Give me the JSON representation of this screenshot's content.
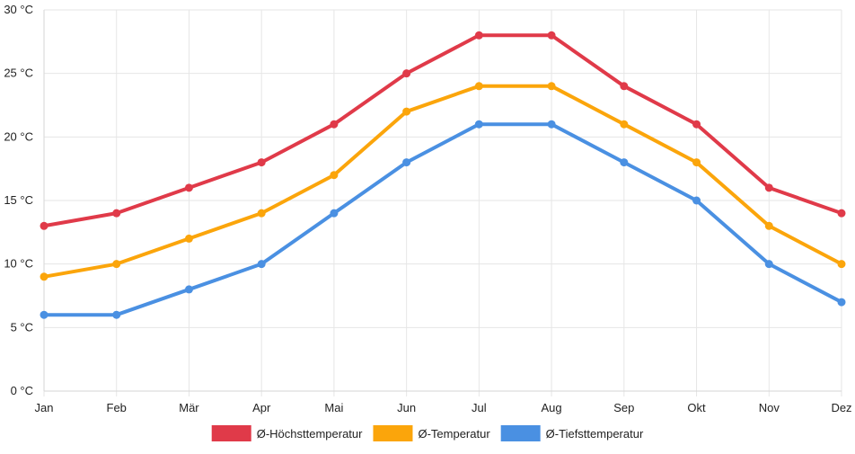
{
  "chart_data": {
    "type": "line",
    "categories": [
      "Jan",
      "Feb",
      "Mär",
      "Apr",
      "Mai",
      "Jun",
      "Jul",
      "Aug",
      "Sep",
      "Okt",
      "Nov",
      "Dez"
    ],
    "ylim": [
      0,
      30
    ],
    "yticks": [
      0,
      5,
      10,
      15,
      20,
      25,
      30
    ],
    "ytick_suffix": " °C",
    "grid": true,
    "legend_position": "bottom",
    "series": [
      {
        "name": "Ø-Höchsttemperatur",
        "color": "#e03a49",
        "values": [
          13,
          14,
          16,
          18,
          21,
          25,
          28,
          28,
          24,
          21,
          16,
          14
        ]
      },
      {
        "name": "Ø-Temperatur",
        "color": "#fba50b",
        "values": [
          9,
          10,
          12,
          14,
          17,
          22,
          24,
          24,
          21,
          18,
          13,
          10
        ]
      },
      {
        "name": "Ø-Tiefsttemperatur",
        "color": "#4a90e2",
        "values": [
          6,
          6,
          8,
          10,
          14,
          18,
          21,
          21,
          18,
          15,
          10,
          7
        ]
      }
    ]
  }
}
